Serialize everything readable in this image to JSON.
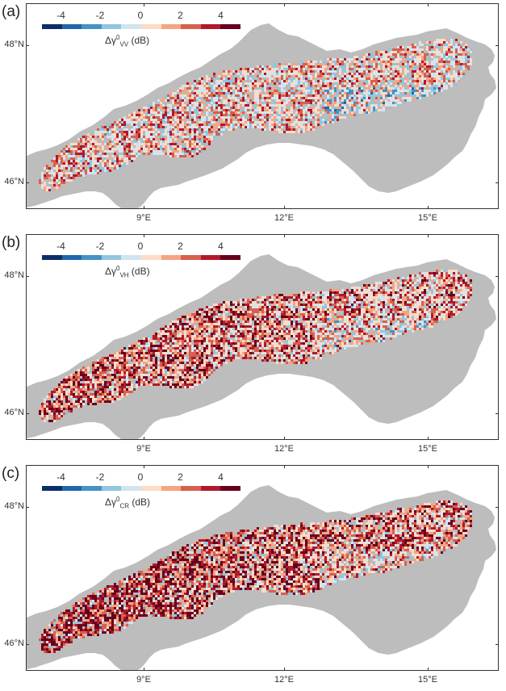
{
  "panels": [
    {
      "label": "(a)",
      "colorbar": {
        "ticks": [
          "-4",
          "-2",
          "0",
          "2",
          "4"
        ],
        "title_prefix": "Δγ",
        "title_sup": "0",
        "title_sub": "VV",
        "title_unit": " (dB)"
      },
      "lat_labels": [
        "48°N",
        "46°N"
      ],
      "lon_labels": [
        "9°E",
        "12°E",
        "15°E"
      ],
      "intensity": "moderate"
    },
    {
      "label": "(b)",
      "colorbar": {
        "ticks": [
          "-4",
          "-2",
          "0",
          "2",
          "4"
        ],
        "title_prefix": "Δγ",
        "title_sup": "0",
        "title_sub": "VH",
        "title_unit": " (dB)"
      },
      "lat_labels": [
        "48°N",
        "46°N"
      ],
      "lon_labels": [
        "9°E",
        "12°E",
        "15°E"
      ],
      "intensity": "strong"
    },
    {
      "label": "(c)",
      "colorbar": {
        "ticks": [
          "-4",
          "-2",
          "0",
          "2",
          "4"
        ],
        "title_prefix": "Δγ",
        "title_sup": "0",
        "title_sub": "CR",
        "title_unit": " (dB)"
      },
      "lat_labels": [
        "48°N",
        "46°N"
      ],
      "lon_labels": [
        "9°E",
        "12°E",
        "15°E"
      ],
      "intensity": "very-strong"
    }
  ],
  "colors": {
    "scale": [
      "#0c2e67",
      "#2166ac",
      "#4393c3",
      "#92c5de",
      "#d1e5f0",
      "#fddbc7",
      "#f4a582",
      "#d6604d",
      "#b2182b",
      "#67001f"
    ],
    "mask_gray": "#bdbdbd"
  }
}
